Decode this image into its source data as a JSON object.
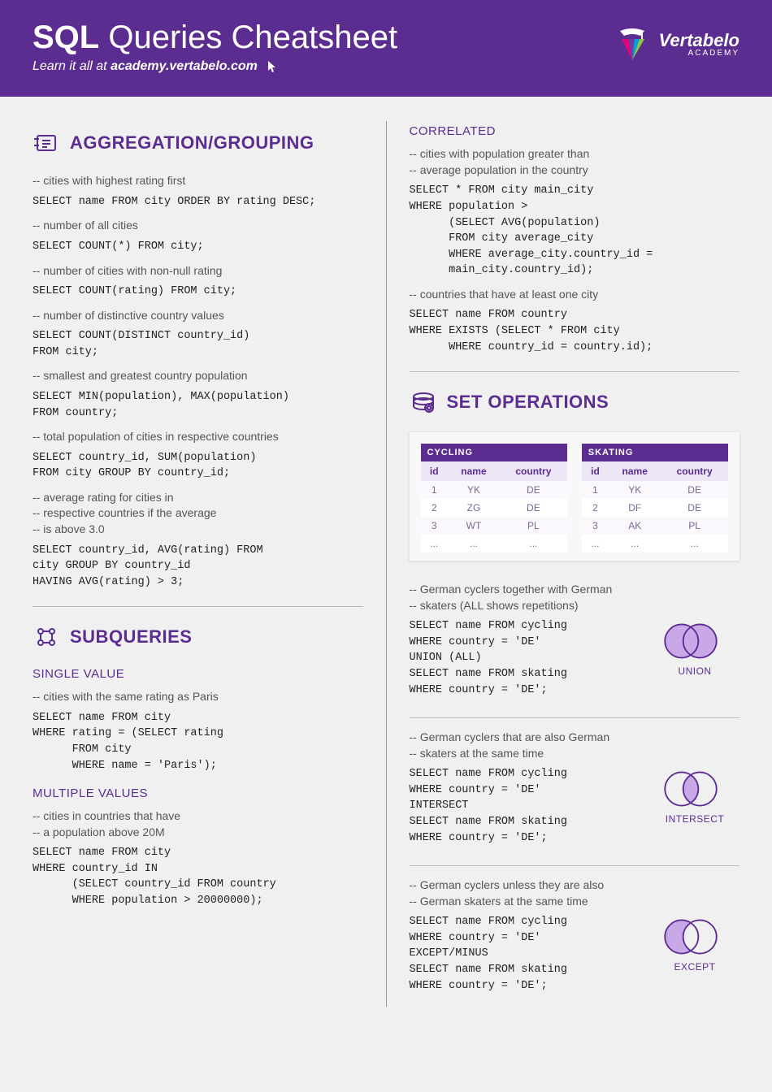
{
  "header": {
    "title_bold": "SQL",
    "title_rest": " Queries Cheatsheet",
    "subtitle_prefix": "Learn it all at ",
    "subtitle_link": "academy.vertabelo.com",
    "logo_name": "Vertabelo",
    "logo_sub": "ACADEMY"
  },
  "colors": {
    "primary": "#5c2d91",
    "page_bg": "#f0f0f0",
    "text_dark": "#222222",
    "text_mid": "#555555",
    "table_header_bg": "#ede6f5",
    "table_cell": "#7a6a95",
    "venn_fill": "#c9a8e8",
    "venn_stroke": "#5c2d91",
    "magenta": "#e6007e"
  },
  "left": {
    "section1": {
      "title": "AGGREGATION/GROUPING",
      "items": [
        {
          "comment": "-- cities with highest rating first",
          "code": "SELECT name FROM city ORDER BY rating DESC;"
        },
        {
          "comment": "-- number of all cities",
          "code": "SELECT COUNT(*) FROM city;"
        },
        {
          "comment": "-- number of cities with non-null rating",
          "code": "SELECT COUNT(rating) FROM city;"
        },
        {
          "comment": "-- number of distinctive country values",
          "code": "SELECT COUNT(DISTINCT country_id)\nFROM city;"
        },
        {
          "comment": "-- smallest and greatest country population",
          "code": "SELECT MIN(population), MAX(population)\nFROM country;"
        },
        {
          "comment": "-- total population of cities in respective countries",
          "code": "SELECT country_id, SUM(population)\nFROM city GROUP BY country_id;"
        },
        {
          "comment": "-- average rating for cities in\n-- respective countries if the average\n-- is above 3.0",
          "code": "SELECT country_id, AVG(rating) FROM\ncity GROUP BY country_id\nHAVING AVG(rating) > 3;"
        }
      ]
    },
    "section2": {
      "title": "SUBQUERIES",
      "single": {
        "title": "SINGLE VALUE",
        "comment": "-- cities with the same rating as Paris",
        "code": "SELECT name FROM city\nWHERE rating = (SELECT rating\n      FROM city\n      WHERE name = 'Paris');"
      },
      "multiple": {
        "title": "MULTIPLE VALUES",
        "comment": "-- cities in countries that have\n-- a population above 20M",
        "code": "SELECT name FROM city\nWHERE country_id IN\n      (SELECT country_id FROM country\n      WHERE population > 20000000);"
      }
    }
  },
  "right": {
    "correlated": {
      "title": "CORRELATED",
      "items": [
        {
          "comment": "-- cities with population greater than\n-- average population in the country",
          "code": "SELECT * FROM city main_city\nWHERE population >\n      (SELECT AVG(population)\n      FROM city average_city\n      WHERE average_city.country_id =\n      main_city.country_id);"
        },
        {
          "comment": "-- countries that have at least one city",
          "code": "SELECT name FROM country\nWHERE EXISTS (SELECT * FROM city\n      WHERE country_id = country.id);"
        }
      ]
    },
    "setops": {
      "title": "SET OPERATIONS",
      "tables": {
        "cycling": {
          "title": "CYCLING",
          "columns": [
            "id",
            "name",
            "country"
          ],
          "rows": [
            [
              "1",
              "YK",
              "DE"
            ],
            [
              "2",
              "ZG",
              "DE"
            ],
            [
              "3",
              "WT",
              "PL"
            ],
            [
              "...",
              "...",
              "..."
            ]
          ]
        },
        "skating": {
          "title": "SKATING",
          "columns": [
            "id",
            "name",
            "country"
          ],
          "rows": [
            [
              "1",
              "YK",
              "DE"
            ],
            [
              "2",
              "DF",
              "DE"
            ],
            [
              "3",
              "AK",
              "PL"
            ],
            [
              "...",
              "...",
              "..."
            ]
          ]
        }
      },
      "ops": [
        {
          "comment": "-- German cyclers together with German\n-- skaters (ALL shows repetitions)",
          "code": "SELECT name FROM cycling\nWHERE country = 'DE'\nUNION (ALL)\nSELECT name FROM skating\nWHERE country = 'DE';",
          "label": "UNION",
          "venn": "union"
        },
        {
          "comment": "-- German cyclers that are also German\n-- skaters at the same time",
          "code": "SELECT name FROM cycling\nWHERE country = 'DE'\nINTERSECT\nSELECT name FROM skating\nWHERE country = 'DE';",
          "label": "INTERSECT",
          "venn": "intersect"
        },
        {
          "comment": "-- German cyclers unless they are also\n-- German skaters at the same time",
          "code": "SELECT name FROM cycling\nWHERE country = 'DE'\nEXCEPT/MINUS\nSELECT name FROM skating\nWHERE country = 'DE';",
          "label": "EXCEPT",
          "venn": "except"
        }
      ]
    }
  }
}
